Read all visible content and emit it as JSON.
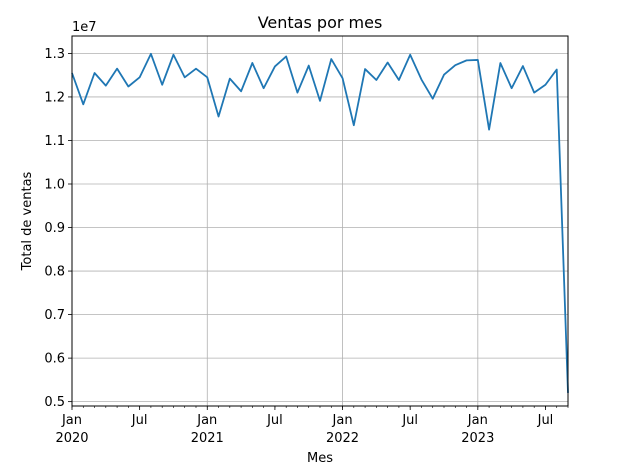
{
  "chart_data": {
    "type": "line",
    "title": "Ventas por mes",
    "xlabel": "Mes",
    "ylabel": "Total de ventas",
    "y_scale_label": "1e7",
    "y_scale": 10000000,
    "ylim": [
      4.9,
      13.4
    ],
    "y_ticks": [
      0.5,
      0.6,
      0.7,
      0.8,
      0.9,
      1.0,
      1.1,
      1.2,
      1.3
    ],
    "y_tick_labels": [
      "0.5",
      "0.6",
      "0.7",
      "0.8",
      "0.9",
      "1.0",
      "1.1",
      "1.2",
      "1.3"
    ],
    "x_ticks": [
      {
        "date": "2020-01",
        "label": "Jan",
        "year": "2020",
        "major": true
      },
      {
        "date": "2020-07",
        "label": "Jul",
        "year": "",
        "major": false
      },
      {
        "date": "2021-01",
        "label": "Jan",
        "year": "2021",
        "major": true
      },
      {
        "date": "2021-07",
        "label": "Jul",
        "year": "",
        "major": false
      },
      {
        "date": "2022-01",
        "label": "Jan",
        "year": "2022",
        "major": true
      },
      {
        "date": "2022-07",
        "label": "Jul",
        "year": "",
        "major": false
      },
      {
        "date": "2023-01",
        "label": "Jan",
        "year": "2023",
        "major": true
      },
      {
        "date": "2023-07",
        "label": "Jul",
        "year": "",
        "major": false
      }
    ],
    "grid": true,
    "line_color": "#1f77b4",
    "x": [
      "2020-01",
      "2020-02",
      "2020-03",
      "2020-04",
      "2020-05",
      "2020-06",
      "2020-07",
      "2020-08",
      "2020-09",
      "2020-10",
      "2020-11",
      "2020-12",
      "2021-01",
      "2021-02",
      "2021-03",
      "2021-04",
      "2021-05",
      "2021-06",
      "2021-07",
      "2021-08",
      "2021-09",
      "2021-10",
      "2021-11",
      "2021-12",
      "2022-01",
      "2022-02",
      "2022-03",
      "2022-04",
      "2022-05",
      "2022-06",
      "2022-07",
      "2022-08",
      "2022-09",
      "2022-10",
      "2022-11",
      "2022-12",
      "2023-01",
      "2023-02",
      "2023-03",
      "2023-04",
      "2023-05",
      "2023-06",
      "2023-07",
      "2023-08",
      "2023-09"
    ],
    "series": [
      {
        "values": [
          12.55,
          11.83,
          12.55,
          12.26,
          12.65,
          12.24,
          12.45,
          12.99,
          12.28,
          12.97,
          12.45,
          12.65,
          12.45,
          11.55,
          12.42,
          12.13,
          12.78,
          12.2,
          12.7,
          12.93,
          12.1,
          12.72,
          11.91,
          12.87,
          12.43,
          11.35,
          12.64,
          12.39,
          12.79,
          12.39,
          12.97,
          12.4,
          11.96,
          12.51,
          12.73,
          12.84,
          12.85,
          11.25,
          12.78,
          12.2,
          12.71,
          12.1,
          12.28,
          12.63,
          5.2
        ]
      }
    ]
  }
}
